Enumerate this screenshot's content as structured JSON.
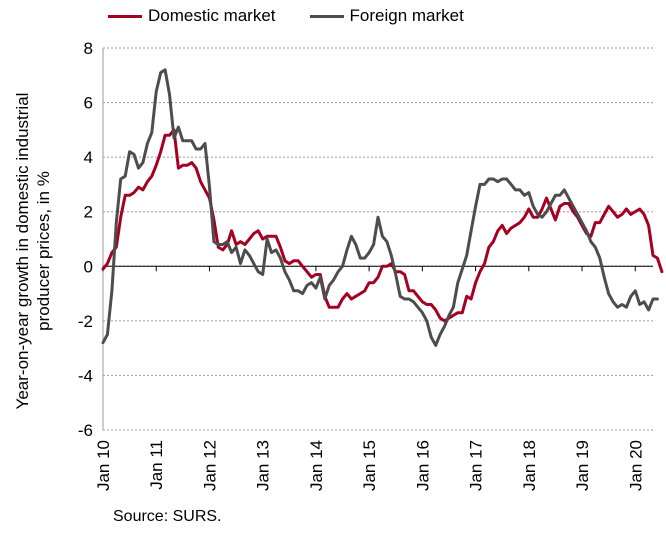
{
  "chart_data": {
    "type": "line",
    "ylabel": "Year-on-year growth in domestic industrial producer prices, in %",
    "ylim": [
      -6,
      8
    ],
    "yticks": [
      "8",
      "6",
      "4",
      "2",
      "0",
      "-2",
      "-4",
      "-6"
    ],
    "xticks": [
      "Jan 10",
      "Jan 11",
      "Jan 12",
      "Jan 13",
      "Jan 14",
      "Jan 15",
      "Jan 16",
      "Jan 17",
      "Jan 18",
      "Jan 19",
      "Jan 20"
    ],
    "x_start": "2010-01",
    "grid": true,
    "legend_position": "top",
    "source": "Source: SURS.",
    "series": [
      {
        "name": "Domestic market",
        "color": "#A50021",
        "values": [
          -0.1,
          0.1,
          0.5,
          0.7,
          1.8,
          2.6,
          2.6,
          2.7,
          2.9,
          2.8,
          3.1,
          3.3,
          3.7,
          4.2,
          4.8,
          4.8,
          5.0,
          3.6,
          3.7,
          3.7,
          3.8,
          3.6,
          3.1,
          2.8,
          2.5,
          1.7,
          0.7,
          0.6,
          0.8,
          1.3,
          0.8,
          0.9,
          0.8,
          1.0,
          1.2,
          1.3,
          1.0,
          1.1,
          1.1,
          1.1,
          0.7,
          0.2,
          0.1,
          0.2,
          0.2,
          0.0,
          -0.2,
          -0.4,
          -0.3,
          -0.3,
          -1.1,
          -1.5,
          -1.5,
          -1.5,
          -1.2,
          -1.0,
          -1.2,
          -1.1,
          -1.0,
          -0.9,
          -0.6,
          -0.6,
          -0.4,
          0.0,
          0.0,
          0.1,
          -0.2,
          -0.2,
          -0.3,
          -0.9,
          -0.9,
          -1.1,
          -1.3,
          -1.4,
          -1.4,
          -1.6,
          -1.9,
          -2.0,
          -1.9,
          -1.8,
          -1.7,
          -1.7,
          -1.1,
          -1.2,
          -0.6,
          -0.2,
          0.1,
          0.7,
          0.9,
          1.3,
          1.5,
          1.2,
          1.4,
          1.5,
          1.6,
          1.8,
          2.1,
          1.8,
          1.8,
          2.1,
          2.5,
          2.1,
          1.7,
          2.2,
          2.3,
          2.3,
          2.0,
          1.8,
          1.5,
          1.2,
          1.1,
          1.6,
          1.6,
          1.9,
          2.2,
          2.0,
          1.8,
          1.9,
          2.1,
          1.9,
          2.0,
          2.1,
          1.9,
          1.5,
          0.4,
          0.3,
          -0.2
        ]
      },
      {
        "name": "Foreign market",
        "color": "#4D4D4D",
        "values": [
          -2.8,
          -2.5,
          -0.9,
          1.6,
          3.2,
          3.3,
          4.2,
          4.1,
          3.6,
          3.8,
          4.5,
          4.9,
          6.4,
          7.1,
          7.2,
          6.3,
          4.7,
          5.1,
          4.6,
          4.6,
          4.6,
          4.3,
          4.3,
          4.5,
          2.9,
          0.9,
          0.8,
          0.8,
          0.9,
          0.5,
          0.7,
          0.1,
          0.6,
          0.4,
          0.1,
          -0.2,
          -0.3,
          1.0,
          0.5,
          0.6,
          0.3,
          -0.2,
          -0.5,
          -0.9,
          -0.9,
          -1.0,
          -0.7,
          -0.6,
          -0.8,
          -0.4,
          -1.2,
          -0.7,
          -0.5,
          -0.2,
          0.0,
          0.6,
          1.1,
          0.8,
          0.3,
          0.3,
          0.5,
          0.8,
          1.8,
          1.1,
          0.9,
          0.4,
          -0.3,
          -1.1,
          -1.2,
          -1.2,
          -1.3,
          -1.5,
          -1.7,
          -2.0,
          -2.6,
          -2.9,
          -2.5,
          -2.2,
          -1.8,
          -1.5,
          -0.6,
          -0.1,
          0.4,
          1.3,
          2.2,
          3.0,
          3.0,
          3.2,
          3.2,
          3.1,
          3.2,
          3.2,
          3.0,
          2.8,
          2.8,
          2.6,
          2.7,
          2.2,
          1.9,
          1.8,
          2.0,
          2.3,
          2.6,
          2.6,
          2.8,
          2.5,
          2.2,
          1.9,
          1.6,
          1.3,
          0.9,
          0.7,
          0.3,
          -0.4,
          -1.0,
          -1.3,
          -1.5,
          -1.4,
          -1.5,
          -1.1,
          -0.9,
          -1.4,
          -1.3,
          -1.6,
          -1.2,
          -1.2
        ]
      }
    ]
  }
}
